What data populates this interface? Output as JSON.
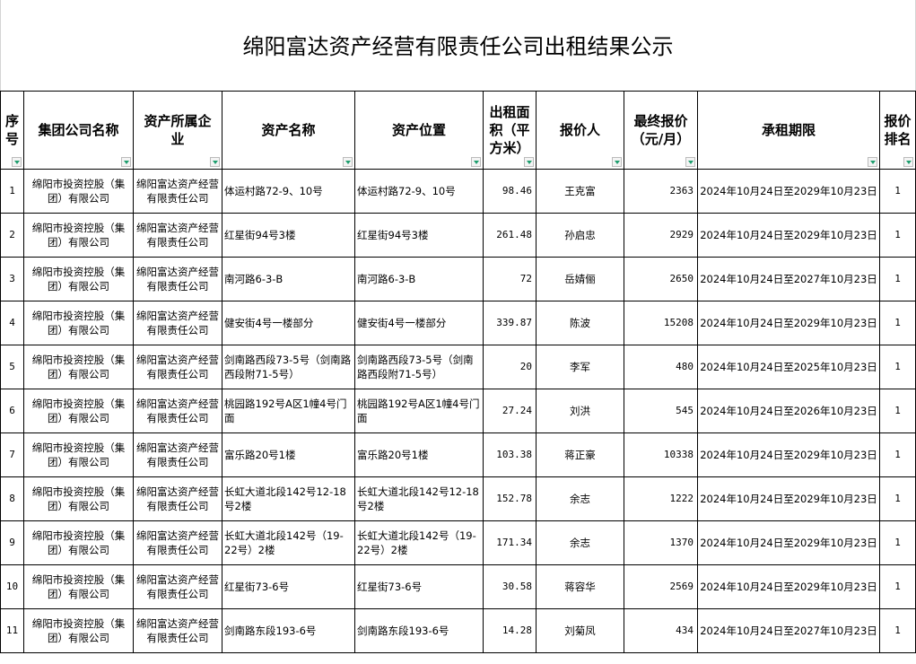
{
  "title": "绵阳富达资产经营有限责任公司出租结果公示",
  "headers": [
    "序号",
    "集团公司名称",
    "资产所属企业",
    "资产名称",
    "资产位置",
    "出租面积（平方米）",
    "报价人",
    "最终报价（元/月）",
    "承租期限",
    "报价排名"
  ],
  "header_lines": {
    "h0": [
      "序",
      "号"
    ],
    "h2": [
      "资产所属企",
      "业"
    ],
    "h5": [
      "出租面",
      "积（平",
      "方米）"
    ],
    "h7": [
      "最终报价",
      "（元/月）"
    ],
    "h9": [
      "报价",
      "排名"
    ]
  },
  "filter_icon_color": "#1e9e6e",
  "rows": [
    {
      "no": "1",
      "group": "绵阳市投资控股（集团）有限公司",
      "owner": "绵阳富达资产经营有限责任公司",
      "name": "体运村路72-9、10号",
      "location": "体运村路72-9、10号",
      "area": "98.46",
      "bidder": "王克富",
      "price": "2363",
      "term": "2024年10月24日至2029年10月23日",
      "rank": "1"
    },
    {
      "no": "2",
      "group": "绵阳市投资控股（集团）有限公司",
      "owner": "绵阳富达资产经营有限责任公司",
      "name": "红星街94号3楼",
      "location": "红星街94号3楼",
      "area": "261.48",
      "bidder": "孙启忠",
      "price": "2929",
      "term": "2024年10月24日至2029年10月23日",
      "rank": "1"
    },
    {
      "no": "3",
      "group": "绵阳市投资控股（集团）有限公司",
      "owner": "绵阳富达资产经营有限责任公司",
      "name": "南河路6-3-B",
      "location": "南河路6-3-B",
      "area": "72",
      "bidder": "岳婧俪",
      "price": "2650",
      "term": "2024年10月24日至2027年10月23日",
      "rank": "1"
    },
    {
      "no": "4",
      "group": "绵阳市投资控股（集团）有限公司",
      "owner": "绵阳富达资产经营有限责任公司",
      "name": "健安街4号一楼部分",
      "location": "健安街4号一楼部分",
      "area": "339.87",
      "bidder": "陈波",
      "price": "15208",
      "term": "2024年10月24日至2029年10月23日",
      "rank": "1"
    },
    {
      "no": "5",
      "group": "绵阳市投资控股（集团）有限公司",
      "owner": "绵阳富达资产经营有限责任公司",
      "name": "剑南路西段73-5号（剑南路西段附71-5号）",
      "location": "剑南路西段73-5号（剑南路西段附71-5号）",
      "area": "20",
      "bidder": "李军",
      "price": "480",
      "term": "2024年10月24日至2025年10月23日",
      "rank": "1"
    },
    {
      "no": "6",
      "group": "绵阳市投资控股（集团）有限公司",
      "owner": "绵阳富达资产经营有限责任公司",
      "name": "桃园路192号A区1幢4号门面",
      "location": "桃园路192号A区1幢4号门面",
      "area": "27.24",
      "bidder": "刘洪",
      "price": "545",
      "term": "2024年10月24日至2026年10月23日",
      "rank": "1"
    },
    {
      "no": "7",
      "group": "绵阳市投资控股（集团）有限公司",
      "owner": "绵阳富达资产经营有限责任公司",
      "name": "富乐路20号1楼",
      "location": "富乐路20号1楼",
      "area": "103.38",
      "bidder": "蒋正豪",
      "price": "10338",
      "term": "2024年10月24日至2029年10月23日",
      "rank": "1"
    },
    {
      "no": "8",
      "group": "绵阳市投资控股（集团）有限公司",
      "owner": "绵阳富达资产经营有限责任公司",
      "name": "长虹大道北段142号12-18号2楼",
      "location": "长虹大道北段142号12-18号2楼",
      "area": "152.78",
      "bidder": "余志",
      "price": "1222",
      "term": "2024年10月24日至2029年10月23日",
      "rank": "1"
    },
    {
      "no": "9",
      "group": "绵阳市投资控股（集团）有限公司",
      "owner": "绵阳富达资产经营有限责任公司",
      "name": "长虹大道北段142号（19-22号）2楼",
      "location": "长虹大道北段142号（19-22号）2楼",
      "area": "171.34",
      "bidder": "余志",
      "price": "1370",
      "term": "2024年10月24日至2029年10月23日",
      "rank": "1"
    },
    {
      "no": "10",
      "group": "绵阳市投资控股（集团）有限公司",
      "owner": "绵阳富达资产经营有限责任公司",
      "name": "红星街73-6号",
      "location": "红星街73-6号",
      "area": "30.58",
      "bidder": "蒋容华",
      "price": "2569",
      "term": "2024年10月24日至2029年10月23日",
      "rank": "1"
    },
    {
      "no": "11",
      "group": "绵阳市投资控股（集团）有限公司",
      "owner": "绵阳富达资产经营有限责任公司",
      "name": "剑南路东段193-6号",
      "location": "剑南路东段193-6号",
      "area": "14.28",
      "bidder": "刘菊凤",
      "price": "434",
      "term": "2024年10月24日至2027年10月23日",
      "rank": "1"
    }
  ]
}
